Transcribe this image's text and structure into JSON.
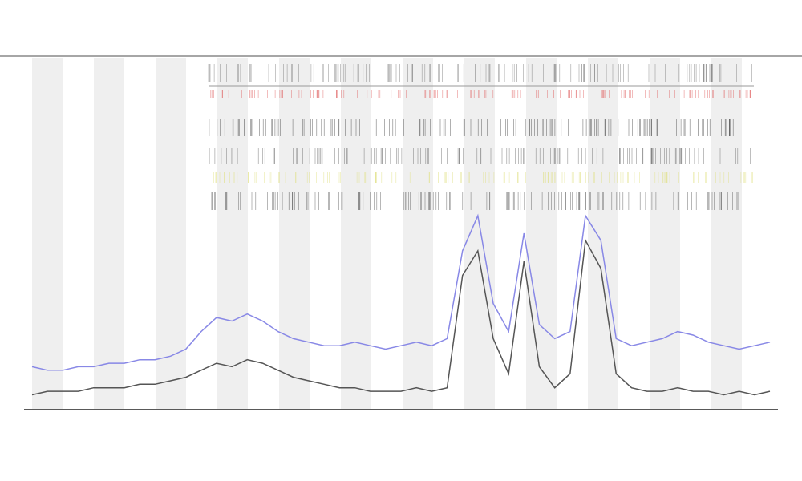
{
  "chart_data": {
    "type": "line",
    "x": [
      0,
      1,
      2,
      3,
      4,
      5,
      6,
      7,
      8,
      9,
      10,
      11,
      12,
      13,
      14,
      15,
      16,
      17,
      18,
      19,
      20,
      21,
      22,
      23,
      24,
      25,
      26,
      27,
      28,
      29,
      30,
      31,
      32,
      33,
      34,
      35,
      36,
      37,
      38,
      39,
      40,
      41,
      42,
      43,
      44,
      45,
      46,
      47,
      48
    ],
    "xlim": [
      0,
      48
    ],
    "ylim": [
      0,
      100
    ],
    "series": [
      {
        "color": "#8888e6",
        "values": [
          12,
          11,
          11,
          12,
          12,
          13,
          13,
          14,
          14,
          15,
          17,
          22,
          26,
          25,
          27,
          25,
          22,
          20,
          19,
          18,
          18,
          19,
          18,
          17,
          18,
          19,
          18,
          20,
          45,
          55,
          30,
          22,
          50,
          24,
          20,
          22,
          55,
          48,
          20,
          18,
          19,
          20,
          22,
          21,
          19,
          18,
          17,
          18,
          19
        ]
      },
      {
        "color": "#555555",
        "values": [
          4,
          5,
          5,
          5,
          6,
          6,
          6,
          7,
          7,
          8,
          9,
          11,
          13,
          12,
          14,
          13,
          11,
          9,
          8,
          7,
          6,
          6,
          5,
          5,
          5,
          6,
          5,
          6,
          38,
          45,
          20,
          10,
          42,
          12,
          6,
          10,
          48,
          40,
          10,
          6,
          5,
          5,
          6,
          5,
          5,
          4,
          5,
          4,
          5
        ]
      }
    ]
  }
}
